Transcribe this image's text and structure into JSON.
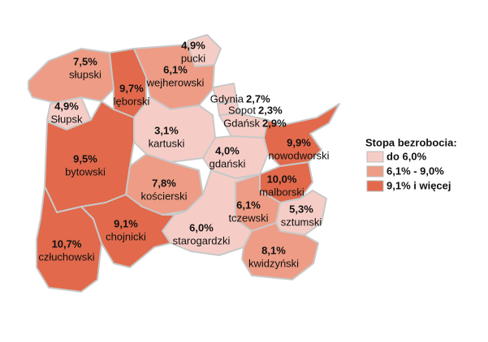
{
  "map": {
    "legend": {
      "title": "Stopa bezrobocia:",
      "items": [
        {
          "label": "do 6,0%",
          "color": "#f6cdc6"
        },
        {
          "label": "6,1% - 9,0%",
          "color": "#ee9c85"
        },
        {
          "label": "9,1% i więcej",
          "color": "#e2694b"
        }
      ]
    },
    "regions": [
      {
        "name": "słupski",
        "value": 7.5,
        "value_label": "7,5%",
        "color": "#ee9c85"
      },
      {
        "name": "Słupsk",
        "value": 4.9,
        "value_label": "4,9%",
        "color": "#f6cdc6"
      },
      {
        "name": "lęborski",
        "value": 9.7,
        "value_label": "9,7%",
        "color": "#e2694b"
      },
      {
        "name": "pucki",
        "value": 4.9,
        "value_label": "4,9%",
        "color": "#f6cdc6"
      },
      {
        "name": "wejherowski",
        "value": 6.1,
        "value_label": "6,1%",
        "color": "#ee9c85"
      },
      {
        "name": "Gdynia",
        "value": 2.7,
        "value_label": "2,7%",
        "color": "#f6cdc6"
      },
      {
        "name": "Sopot",
        "value": 2.3,
        "value_label": "2,3%",
        "color": "#f6cdc6"
      },
      {
        "name": "Gdańsk",
        "value": 2.9,
        "value_label": "2,9%",
        "color": "#f6cdc6"
      },
      {
        "name": "kartuski",
        "value": 3.1,
        "value_label": "3,1%",
        "color": "#f6cdc6"
      },
      {
        "name": "gdański",
        "value": 4.0,
        "value_label": "4,0%",
        "color": "#f6cdc6"
      },
      {
        "name": "nowodworski",
        "value": 9.9,
        "value_label": "9,9%",
        "color": "#e2694b"
      },
      {
        "name": "bytowski",
        "value": 9.5,
        "value_label": "9,5%",
        "color": "#e2694b"
      },
      {
        "name": "kościerski",
        "value": 7.8,
        "value_label": "7,8%",
        "color": "#ee9c85"
      },
      {
        "name": "malborski",
        "value": 10.0,
        "value_label": "10,0%",
        "color": "#e2694b"
      },
      {
        "name": "starogardzki",
        "value": 6.0,
        "value_label": "6,0%",
        "color": "#f6cdc6"
      },
      {
        "name": "tczewski",
        "value": 6.1,
        "value_label": "6,1%",
        "color": "#ee9c85"
      },
      {
        "name": "sztumski",
        "value": 5.3,
        "value_label": "5,3%",
        "color": "#f6cdc6"
      },
      {
        "name": "kwidzyński",
        "value": 8.1,
        "value_label": "8,1%",
        "color": "#ee9c85"
      },
      {
        "name": "człuchowski",
        "value": 10.7,
        "value_label": "10,7%",
        "color": "#e2694b"
      },
      {
        "name": "chojnicki",
        "value": 9.1,
        "value_label": "9,1%",
        "color": "#e2694b"
      }
    ]
  }
}
